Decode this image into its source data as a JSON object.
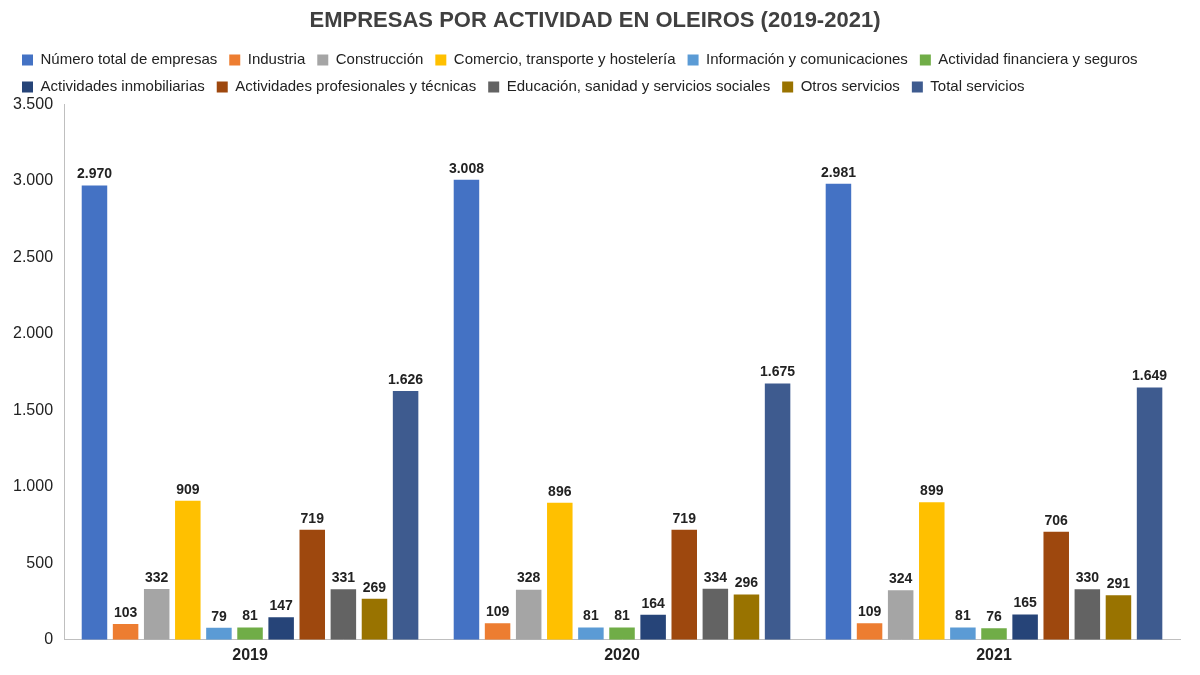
{
  "chart_data": {
    "type": "bar",
    "title": "EMPRESAS POR ACTIVIDAD EN OLEIROS (2019-2021)",
    "categories": [
      "2019",
      "2020",
      "2021"
    ],
    "series": [
      {
        "name": "Número total de empresas",
        "color": "#4472c4",
        "values": [
          2970,
          3008,
          2981
        ],
        "value_labels": [
          "2.970",
          "3.008",
          "2.981"
        ]
      },
      {
        "name": "Industria",
        "color": "#ed7d31",
        "values": [
          103,
          109,
          109
        ]
      },
      {
        "name": "Construcción",
        "color": "#a5a5a5",
        "values": [
          332,
          328,
          324
        ]
      },
      {
        "name": "Comercio, transporte y hostelería",
        "color": "#ffc000",
        "values": [
          909,
          896,
          899
        ]
      },
      {
        "name": "Información y comunicaciones",
        "color": "#5b9bd5",
        "values": [
          79,
          81,
          81
        ]
      },
      {
        "name": "Actividad financiera y seguros",
        "color": "#70ad47",
        "values": [
          81,
          81,
          76
        ]
      },
      {
        "name": "Actividades inmobiliarias",
        "color": "#264478",
        "values": [
          147,
          164,
          165
        ]
      },
      {
        "name": "Actividades profesionales y técnicas",
        "color": "#9e480e",
        "values": [
          719,
          719,
          706
        ]
      },
      {
        "name": "Educación, sanidad y servicios sociales",
        "color": "#636363",
        "values": [
          331,
          334,
          330
        ]
      },
      {
        "name": "Otros servicios",
        "color": "#997300",
        "values": [
          269,
          296,
          291
        ]
      },
      {
        "name": "Total servicios",
        "color": "#3e5b8f",
        "values": [
          1626,
          1675,
          1649
        ],
        "value_labels": [
          "1.626",
          "1.675",
          "1.649"
        ]
      }
    ],
    "ylim": [
      0,
      3500
    ],
    "yticks": [
      0,
      {
        "value": 500,
        "label": "500"
      },
      {
        "value": 1000,
        "label": "1.000"
      },
      {
        "value": 1500,
        "label": "1.500"
      },
      {
        "value": 2000,
        "label": "2.000"
      },
      {
        "value": 2500,
        "label": "2.500"
      },
      {
        "value": 3000,
        "label": "3.000"
      },
      {
        "value": 3500,
        "label": "3.500"
      }
    ],
    "grid": false,
    "legend": "top",
    "data_labels": true
  }
}
